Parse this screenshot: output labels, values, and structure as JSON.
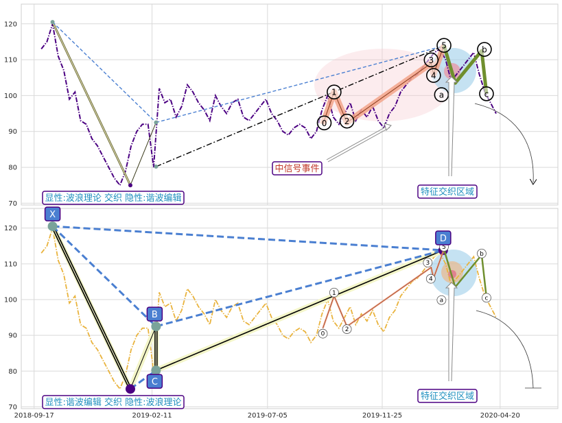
{
  "chart_data": [
    {
      "type": "line",
      "panel": "top",
      "ylim": [
        69.5,
        125.5
      ],
      "yticks": [
        70,
        80,
        90,
        100,
        110,
        120
      ],
      "xlim": [
        "2018-09-01",
        "2020-07-01"
      ],
      "grid": true,
      "series": [
        {
          "style": "dash-dot",
          "color": "#4b0082",
          "x": [
            "2018-09-26",
            "2018-10-03",
            "2018-10-10",
            "2018-10-17",
            "2018-10-24",
            "2018-10-31",
            "2018-11-07",
            "2018-11-14",
            "2018-11-21",
            "2018-11-28",
            "2018-12-05",
            "2018-12-12",
            "2018-12-19",
            "2018-12-26",
            "2019-01-02",
            "2019-01-09",
            "2019-01-16",
            "2019-01-23",
            "2019-01-30",
            "2019-02-06",
            "2019-02-13",
            "2019-02-20",
            "2019-02-27",
            "2019-03-06",
            "2019-03-13",
            "2019-03-20",
            "2019-03-27",
            "2019-04-03",
            "2019-04-10",
            "2019-04-17",
            "2019-04-24",
            "2019-05-01",
            "2019-05-08",
            "2019-05-15",
            "2019-05-22",
            "2019-05-29",
            "2019-06-05",
            "2019-06-12",
            "2019-06-19",
            "2019-06-26",
            "2019-07-03",
            "2019-07-10",
            "2019-07-17",
            "2019-07-24",
            "2019-07-31",
            "2019-08-07",
            "2019-08-14",
            "2019-08-21",
            "2019-08-28",
            "2019-09-04",
            "2019-09-11",
            "2019-09-18",
            "2019-09-25",
            "2019-10-02",
            "2019-10-09",
            "2019-10-16",
            "2019-10-23",
            "2019-10-30",
            "2019-11-06",
            "2019-11-13",
            "2019-11-20",
            "2019-11-27",
            "2019-12-04",
            "2019-12-11",
            "2019-12-18",
            "2019-12-25",
            "2020-01-01",
            "2020-01-08",
            "2020-01-15",
            "2020-01-22",
            "2020-01-29",
            "2020-02-05",
            "2020-02-12",
            "2020-02-19",
            "2020-02-26",
            "2020-03-04",
            "2020-03-11",
            "2020-03-18",
            "2020-03-25",
            "2020-04-01",
            "2020-04-08",
            "2020-04-15"
          ],
          "values": [
            113,
            115,
            120,
            111,
            107,
            99,
            101,
            93,
            92,
            88,
            86,
            83,
            80,
            77,
            75,
            79,
            86,
            90,
            92,
            92,
            80,
            102,
            98,
            99,
            94,
            97,
            103,
            101,
            98,
            96,
            93,
            100,
            97,
            95,
            98,
            99,
            94,
            93,
            95,
            97,
            99,
            95,
            93,
            90,
            89,
            91,
            92,
            91,
            88,
            90,
            96,
            100,
            94,
            92,
            95,
            98,
            93,
            96,
            94,
            97,
            93,
            91,
            95,
            97,
            101,
            103,
            105,
            106,
            108,
            110,
            112,
            113,
            110,
            104,
            106,
            108,
            110,
            112,
            106,
            101,
            98,
            95
          ]
        }
      ],
      "points": {
        "X": [
          "2018-10-10",
          120.5
        ],
        "A": [
          "2019-01-15",
          75
        ],
        "B": [
          "2019-02-16",
          92.5
        ],
        "C": [
          "2019-02-16",
          80.2
        ],
        "D": [
          "2020-02-09",
          113.8
        ]
      },
      "waves": {
        "0": [
          "2019-09-12",
          92
        ],
        "1": [
          "2019-09-26",
          101
        ],
        "2": [
          "2019-10-12",
          92.5
        ],
        "3": [
          "2020-01-25",
          109
        ],
        "4": [
          "2020-01-28",
          106
        ],
        "5": [
          "2020-02-10",
          114
        ],
        "a": [
          "2020-02-24",
          103.5
        ],
        "b": [
          "2020-03-28",
          112.5
        ],
        "c": [
          "2020-04-03",
          100.5
        ]
      },
      "annotations": {
        "signal_event": "中信号事件",
        "feature_zone": "特征交织区域",
        "caption": "显性:波浪理论 交织 隐性:谐波编辑"
      }
    },
    {
      "type": "line",
      "panel": "bottom",
      "ylim": [
        69.5,
        125.5
      ],
      "yticks": [
        70,
        80,
        90,
        100,
        110,
        120
      ],
      "xticks": [
        "2018-09-17",
        "2019-02-11",
        "2019-07-05",
        "2019-11-25",
        "2020-04-20"
      ],
      "grid": true,
      "series": [
        {
          "style": "dash-dot",
          "color": "#e9b33d"
        }
      ],
      "harmonic_labels": {
        "X": "X",
        "B": "B",
        "C": "C",
        "D": "D"
      },
      "annotations": {
        "feature_zone": "特征交织区域",
        "caption": "显性:谐波编辑 交织 隐性:波浪理论"
      }
    }
  ]
}
